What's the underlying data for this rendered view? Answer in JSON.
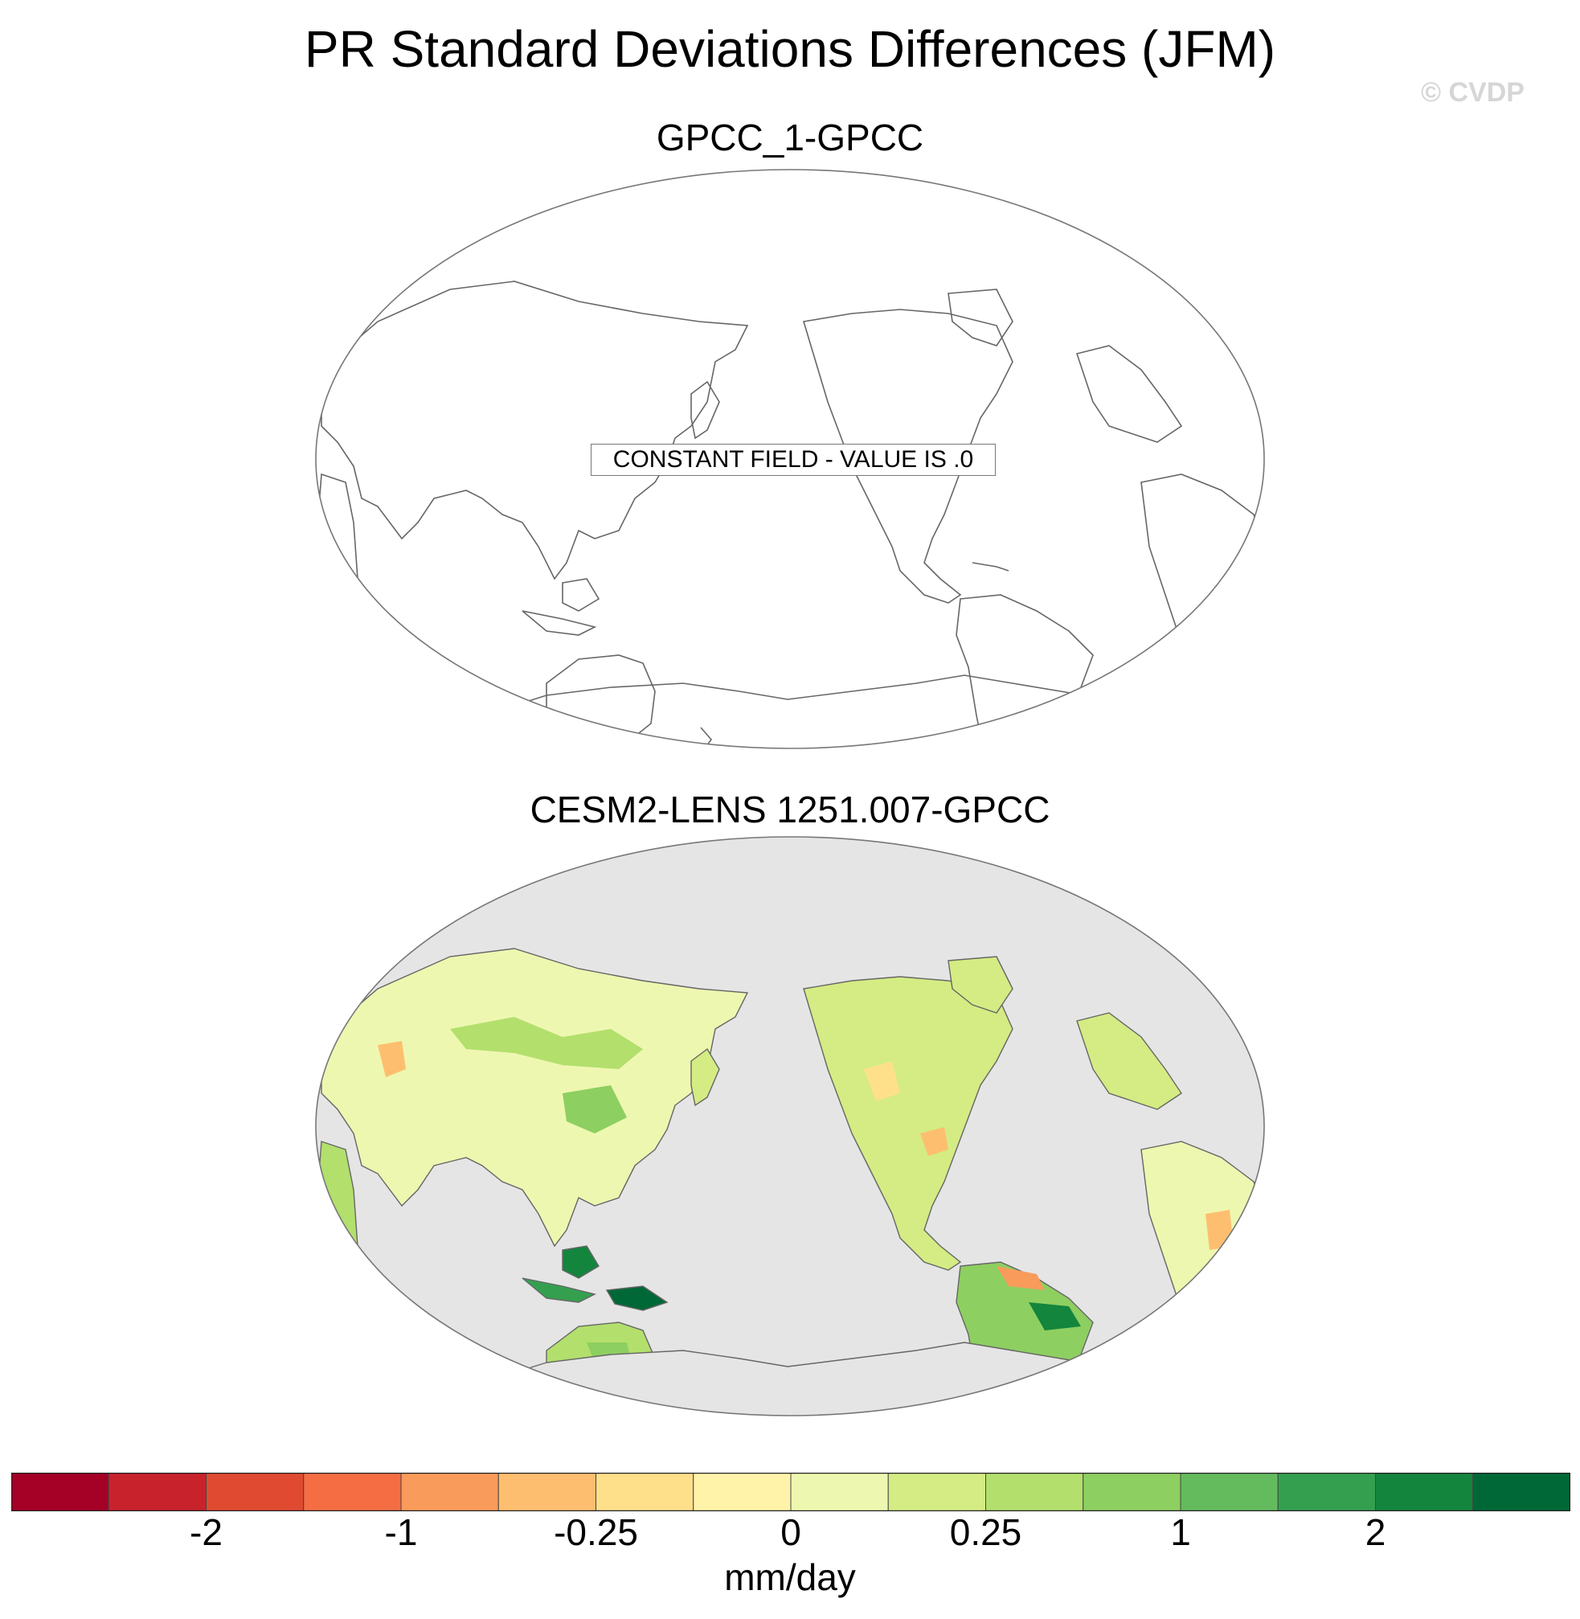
{
  "title": "PR Standard Deviations Differences (JFM)",
  "watermark": "© CVDP",
  "panels": [
    {
      "title": "GPCC_1-GPCC",
      "note": "CONSTANT FIELD - VALUE IS .0"
    },
    {
      "title": "CESM2-LENS 1251.007-GPCC"
    }
  ],
  "colorbar": {
    "colors": [
      "#a50026",
      "#c8232c",
      "#e04a31",
      "#f46d43",
      "#f99b5a",
      "#fdbf6f",
      "#fee08b",
      "#fff3aa",
      "#eef7b0",
      "#d4ec83",
      "#b3df6d",
      "#8ecf61",
      "#63bb5d",
      "#34a04f",
      "#13853d",
      "#006837"
    ],
    "tick_labels": [
      "-2",
      "-1",
      "-0.25",
      "0",
      "0.25",
      "1",
      "2"
    ],
    "units": "mm/day"
  },
  "colors": {
    "ocean_missing": "#e5e5e5",
    "coastline": "#666666"
  }
}
